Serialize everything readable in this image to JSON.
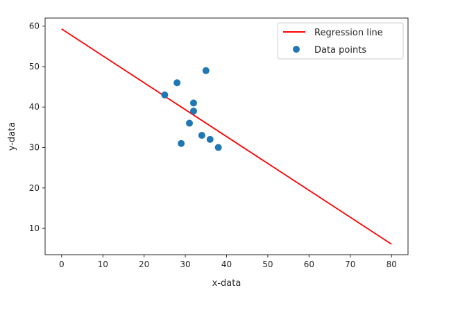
{
  "chart_data": {
    "type": "scatter",
    "title": "",
    "xlabel": "x-data",
    "ylabel": "y-data",
    "xlim": [
      -4,
      84
    ],
    "ylim": [
      3.5,
      62
    ],
    "xticks": [
      0,
      10,
      20,
      30,
      40,
      50,
      60,
      70,
      80
    ],
    "yticks": [
      10,
      20,
      30,
      40,
      50,
      60
    ],
    "grid": false,
    "legend_position": "top-right",
    "series": [
      {
        "name": "Regression line",
        "kind": "line",
        "color": "#ff0000",
        "x": [
          0,
          80
        ],
        "y": [
          59.3,
          6.1
        ]
      },
      {
        "name": "Data points",
        "kind": "scatter",
        "color": "#1f77b4",
        "x": [
          25,
          28,
          29,
          31,
          32,
          32,
          34,
          35,
          36,
          38
        ],
        "y": [
          43,
          46,
          31,
          36,
          41,
          39,
          33,
          49,
          32,
          30
        ]
      }
    ]
  }
}
